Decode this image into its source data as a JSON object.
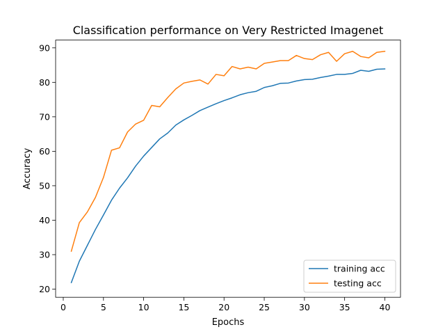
{
  "chart_data": {
    "type": "line",
    "title": "Classification performance on Very Restricted Imagenet",
    "xlabel": "Epochs",
    "ylabel": "Accuracy",
    "xlim": [
      -0.95,
      41.95
    ],
    "ylim": [
      17.64,
      92.26
    ],
    "xticks": [
      0,
      5,
      10,
      15,
      20,
      25,
      30,
      35,
      40
    ],
    "yticks": [
      20,
      30,
      40,
      50,
      60,
      70,
      80,
      90
    ],
    "grid": false,
    "legend_position": "lower-right",
    "x": [
      1,
      2,
      3,
      4,
      5,
      6,
      7,
      8,
      9,
      10,
      11,
      12,
      13,
      14,
      15,
      16,
      17,
      18,
      19,
      20,
      21,
      22,
      23,
      24,
      25,
      26,
      27,
      28,
      29,
      30,
      31,
      32,
      33,
      34,
      35,
      36,
      37,
      38,
      39,
      40
    ],
    "series": [
      {
        "name": "training acc",
        "color": "#1f77b4",
        "values": [
          21.9,
          28.1,
          32.7,
          37.3,
          41.5,
          45.8,
          49.3,
          52.3,
          55.7,
          58.6,
          61.1,
          63.6,
          65.3,
          67.6,
          69.1,
          70.4,
          71.8,
          72.8,
          73.8,
          74.7,
          75.5,
          76.4,
          77.0,
          77.4,
          78.5,
          79.0,
          79.7,
          79.8,
          80.4,
          80.8,
          80.9,
          81.4,
          81.8,
          82.3,
          82.3,
          82.6,
          83.5,
          83.2,
          83.8,
          83.9
        ]
      },
      {
        "name": "testing acc",
        "color": "#ff7f0e",
        "values": [
          31.0,
          39.3,
          42.4,
          46.6,
          52.4,
          60.3,
          61.0,
          65.6,
          67.9,
          69.0,
          73.3,
          72.9,
          75.6,
          78.1,
          79.8,
          80.3,
          80.7,
          79.5,
          82.3,
          81.9,
          84.6,
          83.9,
          84.4,
          83.9,
          85.5,
          85.9,
          86.3,
          86.3,
          87.8,
          86.9,
          86.6,
          88.0,
          88.7,
          86.1,
          88.3,
          89.0,
          87.5,
          87.1,
          88.7,
          89.0
        ]
      }
    ]
  }
}
